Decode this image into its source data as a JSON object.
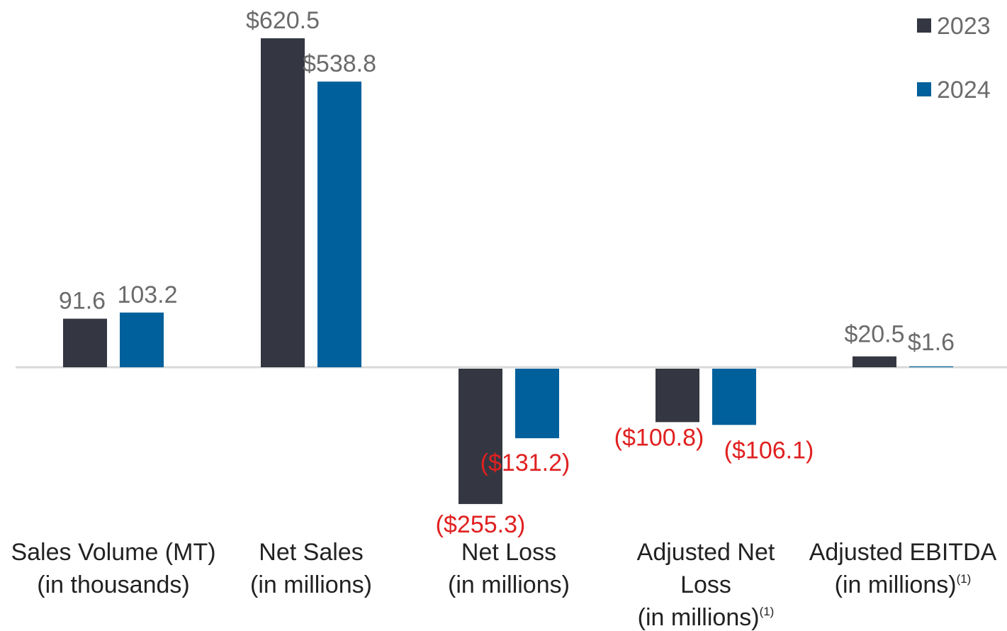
{
  "chart_data": {
    "type": "bar",
    "title": "",
    "xlabel": "",
    "ylabel": "",
    "grid": false,
    "legend_position": "top-right",
    "categories": [
      {
        "lines": [
          "Sales Volume (MT)",
          "(in thousands)"
        ],
        "footnote": ""
      },
      {
        "lines": [
          "Net Sales",
          "(in millions)"
        ],
        "footnote": ""
      },
      {
        "lines": [
          "Net Loss",
          "(in millions)"
        ],
        "footnote": ""
      },
      {
        "lines": [
          "Adjusted Net",
          "Loss",
          "(in millions)"
        ],
        "footnote": "(1)"
      },
      {
        "lines": [
          "Adjusted EBITDA",
          "(in millions)"
        ],
        "footnote": "(1)"
      }
    ],
    "series": [
      {
        "name": "2023",
        "color": "#343741",
        "values": [
          91.6,
          620.5,
          -255.3,
          -100.8,
          20.5
        ],
        "labels": [
          "91.6",
          "$620.5",
          "($255.3)",
          "($100.8)",
          "$20.5"
        ]
      },
      {
        "name": "2024",
        "color": "#00609C",
        "values": [
          103.2,
          538.8,
          -131.2,
          -106.1,
          1.6
        ],
        "labels": [
          "103.2",
          "$538.8",
          "($131.2)",
          "($106.1)",
          "$1.6"
        ]
      }
    ],
    "colors": {
      "positive_label": "#6b6b6b",
      "negative_label": "#e02020",
      "category_text": "#222222",
      "baseline": "#d9d9d9"
    }
  }
}
